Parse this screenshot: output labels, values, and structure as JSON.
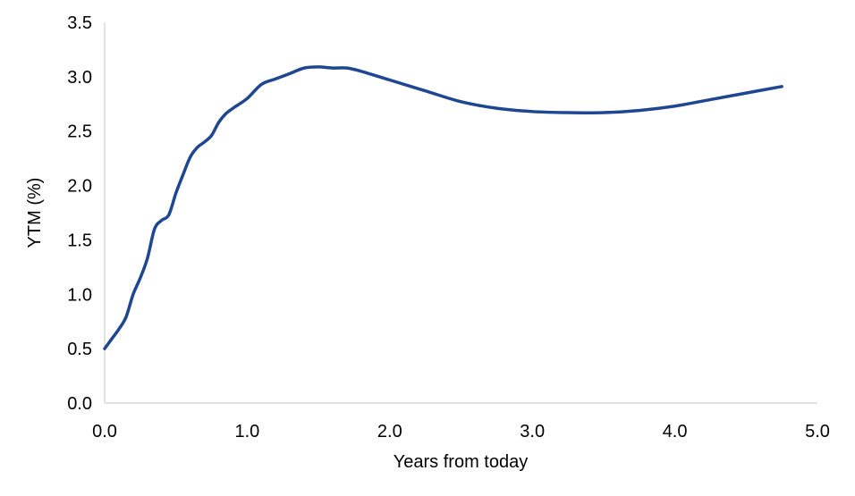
{
  "chart_data": {
    "type": "line",
    "title": "",
    "xlabel": "Years from today",
    "ylabel": "YTM (%)",
    "xlim": [
      0,
      5
    ],
    "ylim": [
      0,
      3.5
    ],
    "x_ticks": [
      "0.0",
      "1.0",
      "2.0",
      "3.0",
      "4.0",
      "5.0"
    ],
    "y_ticks": [
      "0.0",
      "0.5",
      "1.0",
      "1.5",
      "2.0",
      "2.5",
      "3.0",
      "3.5"
    ],
    "grid": false,
    "legend": "none",
    "series": [
      {
        "color": "#1f4690",
        "x": [
          0.0,
          0.05,
          0.1,
          0.15,
          0.2,
          0.25,
          0.3,
          0.35,
          0.4,
          0.45,
          0.5,
          0.55,
          0.6,
          0.65,
          0.7,
          0.75,
          0.8,
          0.85,
          0.9,
          1.0,
          1.1,
          1.2,
          1.3,
          1.4,
          1.5,
          1.6,
          1.7,
          1.8,
          2.0,
          2.25,
          2.5,
          2.75,
          3.0,
          3.25,
          3.5,
          3.75,
          4.0,
          4.25,
          4.5,
          4.75
        ],
        "y": [
          0.5,
          0.59,
          0.68,
          0.79,
          1.0,
          1.15,
          1.33,
          1.6,
          1.68,
          1.73,
          1.93,
          2.1,
          2.26,
          2.35,
          2.4,
          2.46,
          2.58,
          2.66,
          2.71,
          2.8,
          2.93,
          2.98,
          3.03,
          3.08,
          3.09,
          3.08,
          3.08,
          3.05,
          2.97,
          2.87,
          2.77,
          2.71,
          2.68,
          2.67,
          2.67,
          2.69,
          2.73,
          2.79,
          2.85,
          2.91
        ]
      }
    ]
  }
}
